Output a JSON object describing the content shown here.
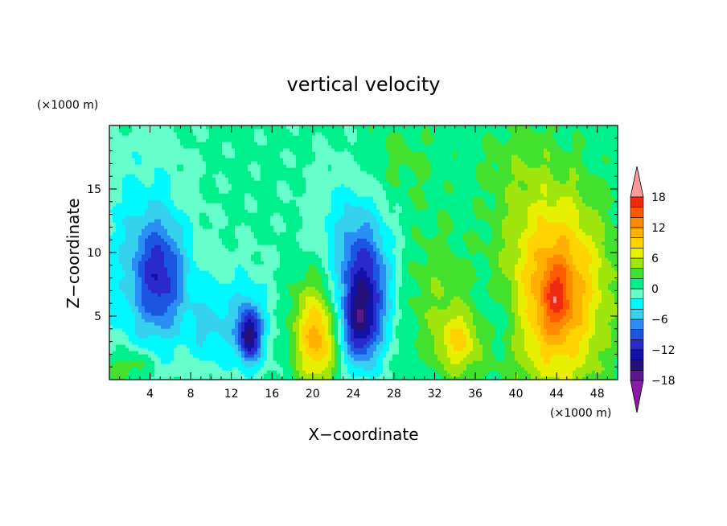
{
  "chart_data": {
    "type": "heatmap",
    "title": "vertical velocity",
    "xlabel": "X−coordinate",
    "ylabel": "Z−coordinate",
    "x_unit_label": "(×1000 m)",
    "y_unit_label": "(×1000 m)",
    "xlim": [
      0,
      50
    ],
    "ylim": [
      0,
      20
    ],
    "xticks": [
      4,
      8,
      12,
      16,
      20,
      24,
      28,
      32,
      36,
      40,
      44,
      48
    ],
    "yticks": [
      5,
      10,
      15
    ],
    "colorbar": {
      "levels": [
        -20,
        -18,
        -16,
        -14,
        -12,
        -10,
        -8,
        -6,
        -4,
        -2,
        0,
        2,
        4,
        6,
        8,
        10,
        12,
        14,
        16,
        18,
        20
      ],
      "tick_labels": [
        "18",
        "12",
        "6",
        "0",
        "−6",
        "−12",
        "−18"
      ],
      "tick_values": [
        18,
        12,
        6,
        0,
        -6,
        -12,
        -18
      ],
      "colors_low_to_high": [
        "#8c1aa6",
        "#5a188c",
        "#24107a",
        "#1212a8",
        "#2a2acc",
        "#1b55e0",
        "#2a8ef4",
        "#36d1ee",
        "#00f8ff",
        "#66ffcc",
        "#00f08c",
        "#44e02e",
        "#a0e60e",
        "#e6f000",
        "#ffd200",
        "#ffb000",
        "#ff8a00",
        "#ff5a00",
        "#f02a10",
        "#ff9a9a"
      ],
      "extend": "both"
    },
    "field": {
      "background": 0.5,
      "blobs": [
        {
          "x": 5,
          "z": 8,
          "amp": -9,
          "sx": 1.8,
          "sz": 3.2
        },
        {
          "x": 3,
          "z": 10,
          "amp": -4,
          "sx": 3.5,
          "sz": 6
        },
        {
          "x": 13.8,
          "z": 3.5,
          "amp": -13,
          "sx": 0.8,
          "sz": 1.5
        },
        {
          "x": 13,
          "z": 5,
          "amp": -4,
          "sx": 2.5,
          "sz": 3
        },
        {
          "x": 9.5,
          "z": 4,
          "amp": -3,
          "sx": 1.5,
          "sz": 2
        },
        {
          "x": 20.5,
          "z": 3,
          "amp": 9,
          "sx": 1.5,
          "sz": 2.5
        },
        {
          "x": 20,
          "z": 6,
          "amp": 3,
          "sx": 2,
          "sz": 3
        },
        {
          "x": 25,
          "z": 6.5,
          "amp": -12,
          "sx": 1.8,
          "sz": 3.5
        },
        {
          "x": 24.5,
          "z": 4,
          "amp": -6,
          "sx": 1.2,
          "sz": 2
        },
        {
          "x": 24,
          "z": 12,
          "amp": -4,
          "sx": 3,
          "sz": 4
        },
        {
          "x": 34.5,
          "z": 3,
          "amp": 7,
          "sx": 1.6,
          "sz": 1.8
        },
        {
          "x": 32,
          "z": 7,
          "amp": 3,
          "sx": 2.5,
          "sz": 4
        },
        {
          "x": 44,
          "z": 7,
          "amp": 12,
          "sx": 3.5,
          "sz": 5.5
        },
        {
          "x": 44,
          "z": 6.5,
          "amp": 5,
          "sx": 1,
          "sz": 1.8
        },
        {
          "x": 38.5,
          "z": 5,
          "amp": -2.5,
          "sx": 2,
          "sz": 2
        },
        {
          "x": 28,
          "z": 17,
          "amp": 2.5,
          "sx": 3,
          "sz": 3
        },
        {
          "x": 40,
          "z": 17,
          "amp": 2,
          "sx": 3,
          "sz": 3
        },
        {
          "x": 1,
          "z": 1,
          "amp": 3,
          "sx": 1.2,
          "sz": 1
        },
        {
          "x": 3,
          "z": 1.2,
          "amp": 3,
          "sx": 1,
          "sz": 0.8
        }
      ]
    }
  }
}
